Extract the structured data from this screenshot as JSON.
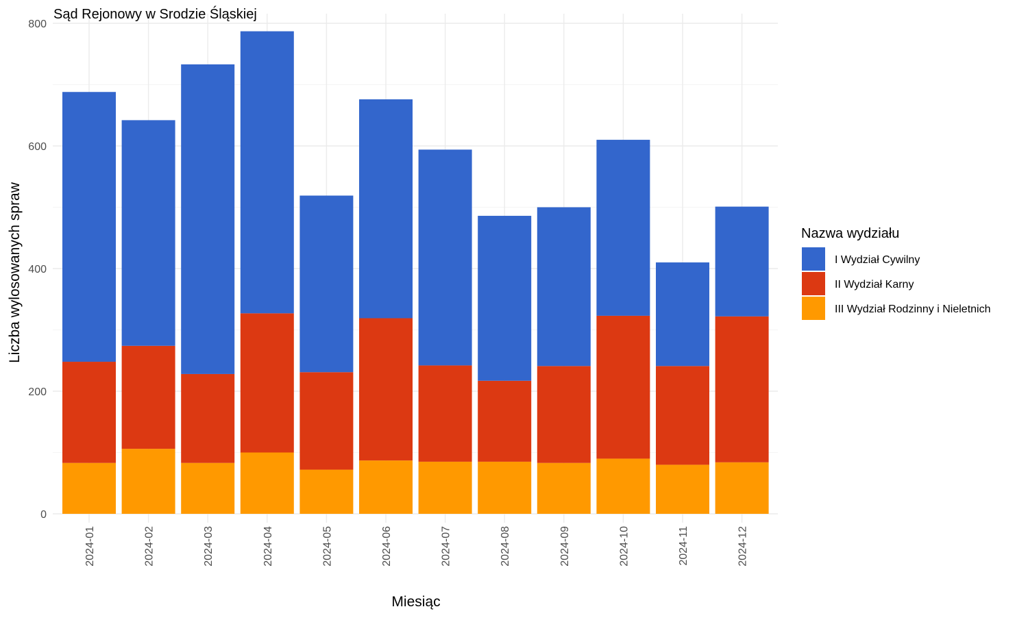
{
  "chart_data": {
    "type": "bar",
    "stacked": true,
    "title": "Sąd Rejonowy w Srodzie Śląskiej",
    "xlabel": "Miesiąc",
    "ylabel": "Liczba wylosowanych spraw",
    "ylim": [
      0,
      800
    ],
    "yticks": [
      0,
      200,
      400,
      600,
      800
    ],
    "grid": true,
    "legend_position": "right",
    "legend_title": "Nazwa wydziału",
    "categories": [
      "2024-01",
      "2024-02",
      "2024-03",
      "2024-04",
      "2024-05",
      "2024-06",
      "2024-07",
      "2024-08",
      "2024-09",
      "2024-10",
      "2024-11",
      "2024-12"
    ],
    "series": [
      {
        "name": "III Wydział Rodzinny i Nieletnich",
        "color": "#FF9900",
        "values": [
          83,
          106,
          83,
          100,
          72,
          87,
          85,
          85,
          83,
          90,
          80,
          84
        ]
      },
      {
        "name": "II Wydział Karny",
        "color": "#DC3912",
        "values": [
          165,
          168,
          145,
          227,
          159,
          232,
          157,
          132,
          158,
          233,
          161,
          238
        ]
      },
      {
        "name": "I Wydział Cywilny",
        "color": "#3366CC",
        "values": [
          440,
          368,
          505,
          460,
          288,
          357,
          352,
          269,
          259,
          287,
          169,
          179
        ]
      }
    ],
    "legend_order": [
      "I Wydział Cywilny",
      "II Wydział Karny",
      "III Wydział Rodzinny i Nieletnich"
    ]
  }
}
